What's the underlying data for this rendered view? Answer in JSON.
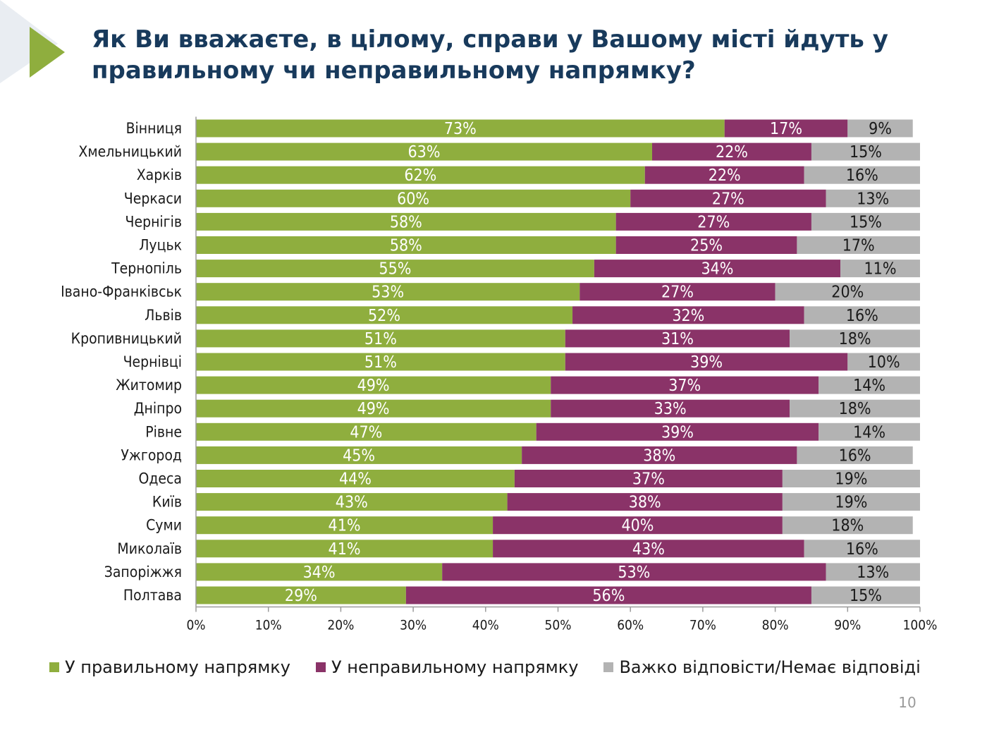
{
  "title": "Як Ви вважаєте, в цілому, справи у Вашому місті йдуть у правильному чи неправильному напрямку?",
  "page_number": "10",
  "colors": {
    "right": "#8fae3e",
    "wrong": "#8a3368",
    "unknown": "#b3b3b3",
    "title": "#183a5c",
    "accent_triangle": "#8fae3e",
    "bg_triangle": "#e9edf2",
    "axis": "#9a9a9a"
  },
  "chart_data": {
    "type": "bar",
    "orientation": "horizontal",
    "stacked": true,
    "title": "Як Ви вважаєте, в цілому, справи у Вашому місті йдуть у правильному чи неправильному напрямку?",
    "categories": [
      "Вінниця",
      "Хмельницький",
      "Харків",
      "Черкаси",
      "Чернігів",
      "Луцьк",
      "Тернопіль",
      "Івано-Франківськ",
      "Львів",
      "Кропивницький",
      "Чернівці",
      "Житомир",
      "Дніпро",
      "Рівне",
      "Ужгород",
      "Одеса",
      "Київ",
      "Суми",
      "Миколаїв",
      "Запоріжжя",
      "Полтава"
    ],
    "series": [
      {
        "name": "У правильному напрямку",
        "color": "#8fae3e",
        "label_color": "#ffffff",
        "values": [
          73,
          63,
          62,
          60,
          58,
          58,
          55,
          53,
          52,
          51,
          51,
          49,
          49,
          47,
          45,
          44,
          43,
          41,
          41,
          34,
          29
        ]
      },
      {
        "name": "У неправильному напрямку",
        "color": "#8a3368",
        "label_color": "#ffffff",
        "values": [
          17,
          22,
          22,
          27,
          27,
          25,
          34,
          27,
          32,
          31,
          39,
          37,
          33,
          39,
          38,
          37,
          38,
          40,
          43,
          53,
          56
        ]
      },
      {
        "name": "Важко відповісти/Немає відповіді",
        "color": "#b3b3b3",
        "label_color": "#1a1a1a",
        "values": [
          9,
          15,
          16,
          13,
          15,
          17,
          11,
          20,
          16,
          18,
          10,
          14,
          18,
          14,
          16,
          19,
          19,
          18,
          16,
          13,
          15
        ]
      }
    ],
    "xlim": [
      0,
      100
    ],
    "x_ticks": [
      "0%",
      "10%",
      "20%",
      "30%",
      "40%",
      "50%",
      "60%",
      "70%",
      "80%",
      "90%",
      "100%"
    ],
    "value_suffix": "%",
    "grid": false,
    "legend_position": "bottom"
  }
}
